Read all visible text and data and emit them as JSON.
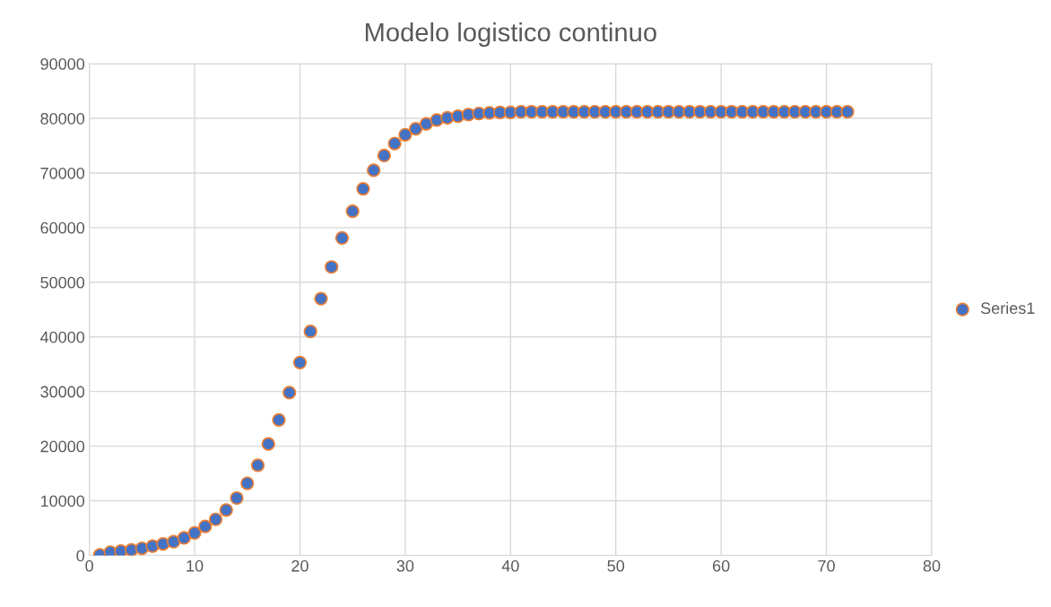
{
  "chart_data": {
    "type": "scatter",
    "title": "Modelo logistico continuo",
    "x": [
      1,
      2,
      3,
      4,
      5,
      6,
      7,
      8,
      9,
      10,
      11,
      12,
      13,
      14,
      15,
      16,
      17,
      18,
      19,
      20,
      21,
      22,
      23,
      24,
      25,
      26,
      27,
      28,
      29,
      30,
      31,
      32,
      33,
      34,
      35,
      36,
      37,
      38,
      39,
      40,
      41,
      42,
      43,
      44,
      45,
      46,
      47,
      48,
      49,
      50,
      51,
      52,
      53,
      54,
      55,
      56,
      57,
      58,
      59,
      60,
      61,
      62,
      63,
      64,
      65,
      66,
      67,
      68,
      69,
      70,
      71,
      72
    ],
    "series": [
      {
        "name": "Series1",
        "color": "#4472c4",
        "values": [
          100,
          600,
          800,
          1000,
          1300,
          1700,
          2100,
          2500,
          3200,
          4100,
          5300,
          6600,
          8300,
          10500,
          13200,
          16500,
          20400,
          24800,
          29800,
          35300,
          41000,
          47000,
          52800,
          58100,
          63000,
          67100,
          70500,
          73200,
          75400,
          77000,
          78100,
          79000,
          79700,
          80100,
          80400,
          80700,
          80900,
          81000,
          81100,
          81100,
          81200,
          81200,
          81200,
          81200,
          81200,
          81200,
          81200,
          81200,
          81200,
          81200,
          81200,
          81200,
          81200,
          81200,
          81200,
          81200,
          81200,
          81200,
          81200,
          81200,
          81200,
          81200,
          81200,
          81200,
          81200,
          81200,
          81200,
          81200,
          81200,
          81200,
          81200,
          81200
        ]
      }
    ],
    "xlim": [
      0,
      80
    ],
    "xticks": [
      0,
      10,
      20,
      30,
      40,
      50,
      60,
      70,
      80
    ],
    "ylim": [
      0,
      90000
    ],
    "yticks": [
      0,
      10000,
      20000,
      30000,
      40000,
      50000,
      60000,
      70000,
      80000,
      90000
    ],
    "grid": true,
    "legend": "right",
    "marker": "circle"
  }
}
